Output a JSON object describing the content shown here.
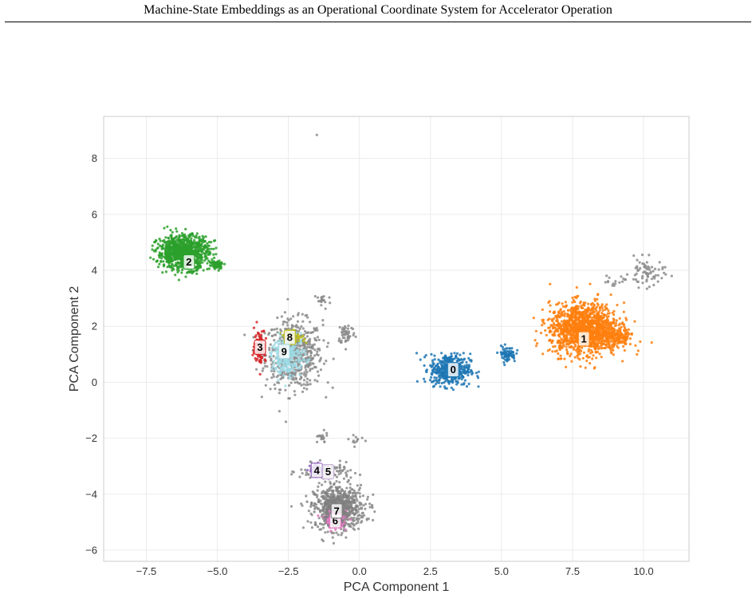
{
  "page": {
    "running_header": "Machine-State Embeddings as an Operational Coordinate System for Accelerator Operation"
  },
  "chart_data": {
    "type": "scatter",
    "title": "",
    "xlabel": "PCA Component 1",
    "ylabel": "PCA Component 2",
    "xlim": [
      -9.0,
      11.6
    ],
    "ylim": [
      -6.4,
      9.5
    ],
    "xticks": [
      -7.5,
      -5.0,
      -2.5,
      0.0,
      2.5,
      5.0,
      7.5,
      10.0
    ],
    "xtick_labels": [
      "−7.5",
      "−5.0",
      "−2.5",
      "0.0",
      "2.5",
      "5.0",
      "7.5",
      "10.0"
    ],
    "yticks": [
      -6,
      -4,
      -2,
      0,
      2,
      4,
      6,
      8
    ],
    "ytick_labels": [
      "−6",
      "−4",
      "−2",
      "0",
      "2",
      "4",
      "6",
      "8"
    ],
    "grid": true,
    "noise_color": "#8c8c8c",
    "clusters": [
      {
        "label": "0",
        "color": "#1f77b4",
        "center": [
          3.2,
          0.45
        ],
        "label_pos": [
          3.3,
          0.45
        ],
        "blobs": [
          {
            "c": [
              3.2,
              0.45
            ],
            "s": [
              0.35,
              0.28
            ],
            "n": 450
          },
          {
            "c": [
              5.2,
              1.0
            ],
            "s": [
              0.15,
              0.14
            ],
            "n": 80
          }
        ]
      },
      {
        "label": "1",
        "color": "#ff7f0e",
        "center": [
          7.9,
          1.7
        ],
        "label_pos": [
          7.9,
          1.55
        ],
        "blobs": [
          {
            "c": [
              7.9,
              1.9
            ],
            "s": [
              0.6,
              0.45
            ],
            "n": 1300
          },
          {
            "c": [
              9.0,
              1.6
            ],
            "s": [
              0.3,
              0.2
            ],
            "n": 150
          }
        ]
      },
      {
        "label": "2",
        "color": "#2ca02c",
        "center": [
          -6.1,
          4.6
        ],
        "label_pos": [
          -6.0,
          4.3
        ],
        "blobs": [
          {
            "c": [
              -6.2,
              4.65
            ],
            "s": [
              0.45,
              0.3
            ],
            "n": 900
          },
          {
            "c": [
              -5.0,
              4.2
            ],
            "s": [
              0.12,
              0.08
            ],
            "n": 60
          }
        ]
      },
      {
        "label": "3",
        "color": "#d62728",
        "center": [
          -3.45,
          1.3
        ],
        "label_pos": [
          -3.5,
          1.25
        ],
        "blobs": [
          {
            "c": [
              -3.5,
              1.3
            ],
            "s": [
              0.1,
              0.3
            ],
            "n": 120
          }
        ]
      },
      {
        "label": "4",
        "color": "#9467bd",
        "center": [
          -1.5,
          -3.15
        ],
        "label_pos": [
          -1.5,
          -3.15
        ],
        "blobs": [
          {
            "c": [
              -1.5,
              -3.15
            ],
            "s": [
              0.12,
              0.1
            ],
            "n": 60
          }
        ]
      },
      {
        "label": "5",
        "color": "#c5b0d5",
        "center": [
          -1.05,
          -3.3
        ],
        "label_pos": [
          -1.1,
          -3.2
        ],
        "blobs": [
          {
            "c": [
              -1.1,
              -3.3
            ],
            "s": [
              0.12,
              0.08
            ],
            "n": 50
          }
        ]
      },
      {
        "label": "6",
        "color": "#e377c2",
        "center": [
          -0.85,
          -4.95
        ],
        "label_pos": [
          -0.85,
          -4.95
        ],
        "blobs": [
          {
            "c": [
              -0.85,
              -4.9
            ],
            "s": [
              0.2,
              0.15
            ],
            "n": 100
          }
        ]
      },
      {
        "label": "7",
        "color": "#7f7f7f",
        "center": [
          -0.8,
          -4.55
        ],
        "label_pos": [
          -0.8,
          -4.6
        ],
        "blobs": [
          {
            "c": [
              -0.8,
              -4.5
            ],
            "s": [
              0.35,
              0.3
            ],
            "n": 250
          }
        ]
      },
      {
        "label": "8",
        "color": "#bcbd22",
        "center": [
          -2.45,
          1.6
        ],
        "label_pos": [
          -2.45,
          1.6
        ],
        "blobs": [
          {
            "c": [
              -2.35,
              1.62
            ],
            "s": [
              0.2,
              0.1
            ],
            "n": 60
          }
        ]
      },
      {
        "label": "9",
        "color": "#9edae5",
        "center": [
          -2.6,
          1.05
        ],
        "label_pos": [
          -2.65,
          1.1
        ],
        "blobs": [
          {
            "c": [
              -2.5,
              0.9
            ],
            "s": [
              0.3,
              0.35
            ],
            "n": 220
          }
        ]
      }
    ],
    "noise": [
      {
        "c": [
          -2.3,
          1.0
        ],
        "s": [
          0.5,
          0.6
        ],
        "n": 600
      },
      {
        "c": [
          -1.3,
          2.9
        ],
        "s": [
          0.15,
          0.15
        ],
        "n": 20
      },
      {
        "c": [
          -0.45,
          1.75
        ],
        "s": [
          0.15,
          0.2
        ],
        "n": 50
      },
      {
        "c": [
          -0.7,
          -4.5
        ],
        "s": [
          0.45,
          0.4
        ],
        "n": 500
      },
      {
        "c": [
          -1.2,
          -3.2
        ],
        "s": [
          0.45,
          0.15
        ],
        "n": 120
      },
      {
        "c": [
          -1.35,
          -2.0
        ],
        "s": [
          0.12,
          0.1
        ],
        "n": 20
      },
      {
        "c": [
          -0.1,
          -2.05
        ],
        "s": [
          0.2,
          0.12
        ],
        "n": 12
      },
      {
        "c": [
          10.1,
          3.9
        ],
        "s": [
          0.3,
          0.25
        ],
        "n": 70
      },
      {
        "c": [
          9.0,
          3.6
        ],
        "s": [
          0.25,
          0.12
        ],
        "n": 15
      },
      {
        "c": [
          -1.5,
          8.85
        ],
        "s": [
          0.01,
          0.01
        ],
        "n": 1
      }
    ]
  }
}
